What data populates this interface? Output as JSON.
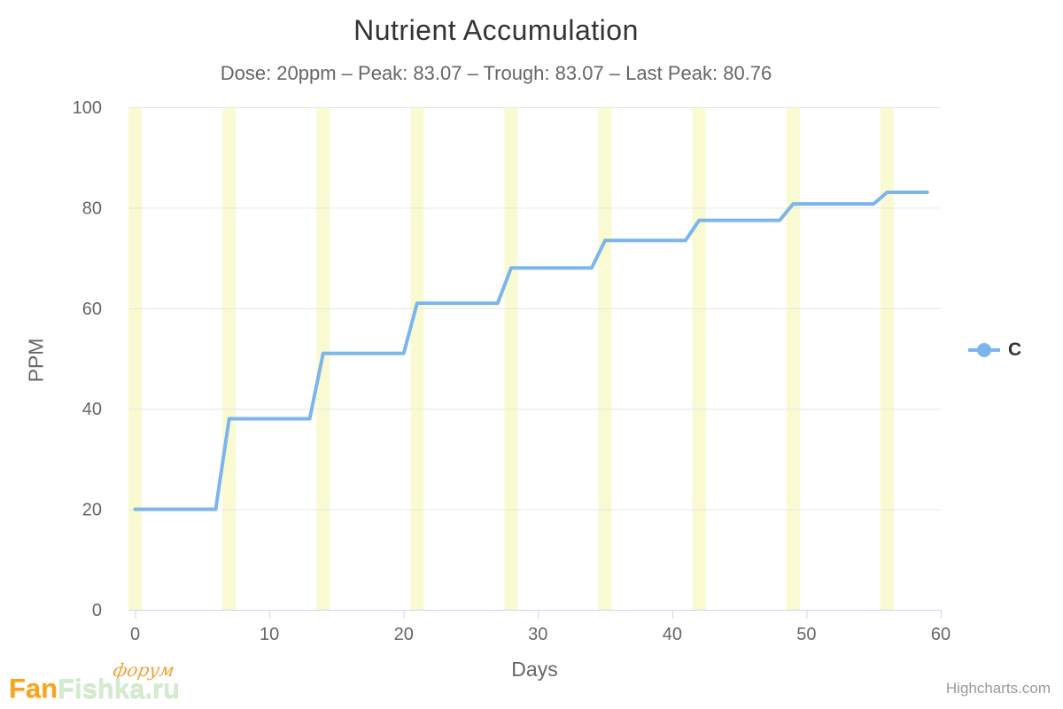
{
  "header": {
    "title": "Nutrient Accumulation",
    "subtitle": "Dose: 20ppm – Peak: 83.07 – Trough: 83.07 – Last Peak: 80.76"
  },
  "chart_data": {
    "type": "line",
    "title": "Nutrient Accumulation",
    "subtitle": "Dose: 20ppm – Peak: 83.07 – Trough: 83.07 – Last Peak: 80.76",
    "xlabel": "Days",
    "ylabel": "PPM",
    "xlim": [
      -0.5,
      60
    ],
    "ylim": [
      0,
      100
    ],
    "x_ticks": [
      0,
      10,
      20,
      30,
      40,
      50,
      60
    ],
    "y_ticks": [
      0,
      20,
      40,
      60,
      80,
      100
    ],
    "grid": "horizontal-only",
    "legend_position": "right-middle",
    "plot_bands": {
      "note": "vertical dosing bands centered on dose days, one day wide",
      "centers": [
        0,
        7,
        14,
        21,
        28,
        35,
        42,
        49,
        56
      ],
      "half_width": 0.5,
      "color": "#fafad2"
    },
    "series": [
      {
        "name": "C",
        "color": "#7cb5ec",
        "points": [
          [
            0,
            20
          ],
          [
            6,
            20
          ],
          [
            7,
            38
          ],
          [
            13,
            38
          ],
          [
            14,
            51
          ],
          [
            20,
            51
          ],
          [
            21,
            61
          ],
          [
            27,
            61
          ],
          [
            28,
            68
          ],
          [
            34,
            68
          ],
          [
            35,
            73.5
          ],
          [
            41,
            73.5
          ],
          [
            42,
            77.5
          ],
          [
            48,
            77.5
          ],
          [
            49,
            80.76
          ],
          [
            55,
            80.76
          ],
          [
            56,
            83.07
          ],
          [
            59,
            83.07
          ]
        ]
      }
    ]
  },
  "legend": {
    "items": [
      {
        "label": "C",
        "color": "#7cb5ec"
      }
    ]
  },
  "footer": {
    "credits": "Highcharts.com",
    "logo": {
      "fan": "Fan",
      "fishka": "Fishka.ru",
      "forum": "форум"
    }
  },
  "colors": {
    "series_line": "#7cb5ec",
    "plot_band": "#fafad2",
    "grid_line": "#e6e6e6",
    "axis_line": "#ccd6eb",
    "title_text": "#333333",
    "subtitle_text": "#666666",
    "axis_text": "#666666",
    "credits_text": "#999999",
    "logo_orange": "#F7A41D",
    "logo_mint": "#D5EAD0"
  }
}
